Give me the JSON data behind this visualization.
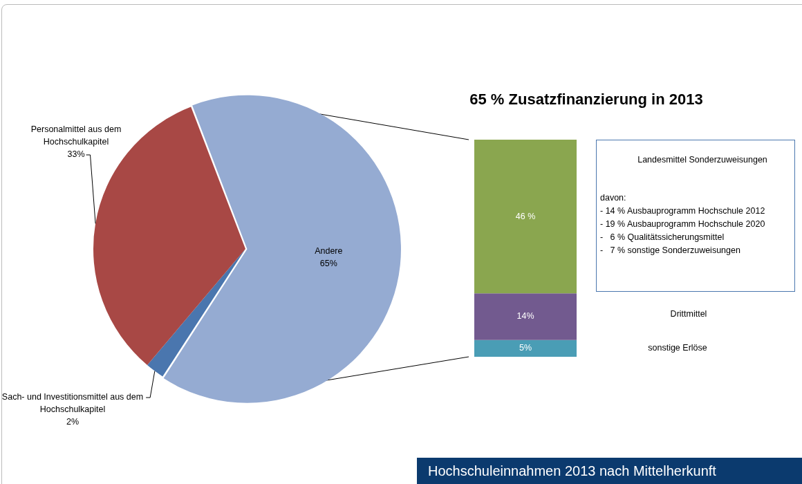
{
  "chart_data": [
    {
      "type": "pie",
      "categories": [
        "Andere",
        "Sach- und Investitionsmittel aus dem Hochschulkapitel",
        "Personalmittel aus dem Hochschulkapitel"
      ],
      "values": [
        65,
        2,
        33
      ],
      "colors": [
        "#95abd2",
        "#4a76ae",
        "#a84845"
      ],
      "value_labels": [
        "65%",
        "2%",
        "33%"
      ],
      "annotations": [
        "Hochschuleinnahmen 2013 nach Mittelherkunft"
      ]
    },
    {
      "type": "bar",
      "title": "65 % Zusatzfinanzierung in 2013",
      "categories": [
        null
      ],
      "stacked": true,
      "series": [
        {
          "name": "sonstige Erlöse",
          "color": "#4a9db5",
          "values": [
            5
          ],
          "value_labels": [
            "5%"
          ]
        },
        {
          "name": "Drittmittel",
          "color": "#725a8f",
          "values": [
            14
          ],
          "value_labels": [
            "14%"
          ]
        },
        {
          "name": "Landesmittel Sonderzuweisungen",
          "color": "#8aa64f",
          "values": [
            46
          ],
          "value_labels": [
            "46 %"
          ]
        }
      ],
      "annotations": [
        "davon:",
        "- 14 % Ausbauprogramm Hochschule 2012",
        "- 19 % Ausbauprogramm Hochschule 2020",
        "-   6 % Qualitätssicherungsmittel",
        "-   7 % sonstige Sonderzuweisungen"
      ]
    }
  ]
}
